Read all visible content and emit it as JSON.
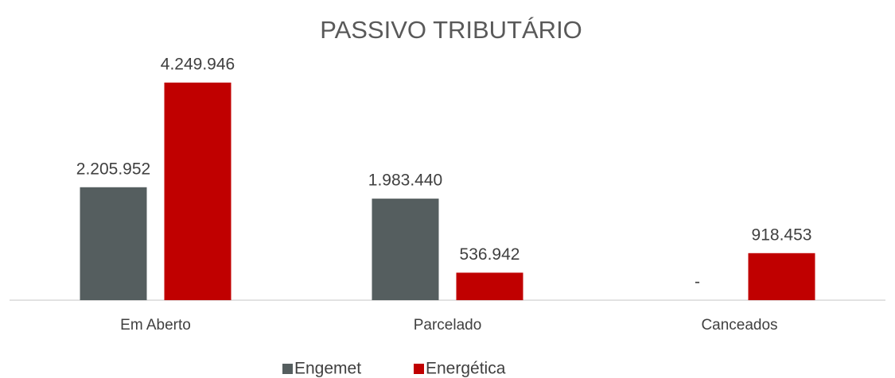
{
  "chart_data": {
    "type": "bar",
    "title": "PASSIVO TRIBUTÁRIO",
    "categories": [
      "Em Aberto",
      "Parcelado",
      "Canceados"
    ],
    "series": [
      {
        "name": "Engemet",
        "color": "#555e5f",
        "values": [
          2205952,
          1983440,
          0
        ],
        "value_labels": [
          "2.205.952",
          "1.983.440",
          "-"
        ]
      },
      {
        "name": "Energética",
        "color": "#c00000",
        "values": [
          4249946,
          536942,
          918453
        ],
        "value_labels": [
          "4.249.946",
          "536.942",
          "918.453"
        ]
      }
    ],
    "legend": "bottom"
  }
}
